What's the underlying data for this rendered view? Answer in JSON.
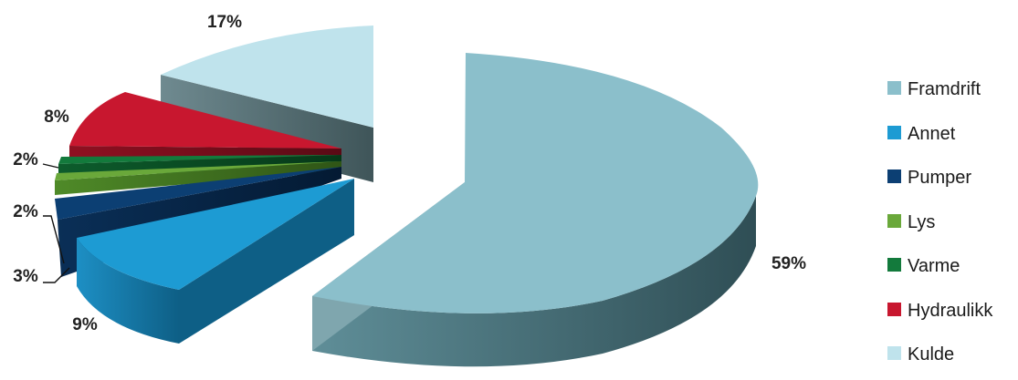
{
  "chart_data": {
    "type": "pie",
    "style": "3d-exploded",
    "legend_position": "right",
    "slices": [
      {
        "label": "Framdrift",
        "value": 59,
        "value_label": "59%",
        "color": "#8bbfcb"
      },
      {
        "label": "Annet",
        "value": 9,
        "value_label": "9%",
        "color": "#1d9bd3"
      },
      {
        "label": "Pumper",
        "value": 3,
        "value_label": "3%",
        "color": "#0c3f73"
      },
      {
        "label": "Lys",
        "value": 2,
        "value_label": "2%",
        "color": "#6aa83a"
      },
      {
        "label": "Varme",
        "value": 2,
        "value_label": "2%",
        "color": "#137a3c"
      },
      {
        "label": "Hydraulikk",
        "value": 8,
        "value_label": "8%",
        "color": "#c8172f"
      },
      {
        "label": "Kulde",
        "value": 17,
        "value_label": "17%",
        "color": "#bfe3ec"
      }
    ]
  }
}
